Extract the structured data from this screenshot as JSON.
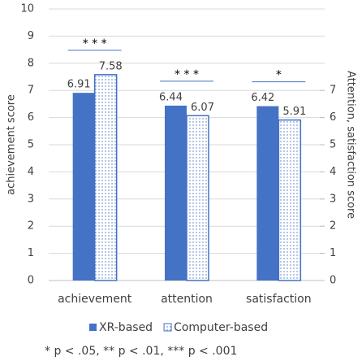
{
  "chart_data": {
    "type": "bar",
    "y_label": "achievement score",
    "y2_label": "Attention, satisfaction score",
    "categories": [
      "achievement",
      "attention",
      "satisfaction"
    ],
    "series": [
      {
        "name": "XR-based",
        "color": "#4472c4",
        "values": [
          6.91,
          6.44,
          6.42
        ]
      },
      {
        "name": "Computer-based",
        "color": "#4472c4",
        "pattern": "dots",
        "values": [
          7.58,
          6.07,
          5.91
        ]
      }
    ],
    "ylim": [
      0,
      10
    ],
    "yticks": [
      0,
      1,
      2,
      3,
      4,
      5,
      6,
      7,
      8,
      9,
      10
    ],
    "y2lim": [
      0,
      10
    ],
    "y2ticks": [
      0,
      1,
      2,
      3,
      4,
      5,
      6,
      7
    ],
    "grid": true,
    "significance": [
      "* * *",
      "* * *",
      "*"
    ],
    "footnote": "* p < .05, ** p < .01, *** p < .001"
  }
}
